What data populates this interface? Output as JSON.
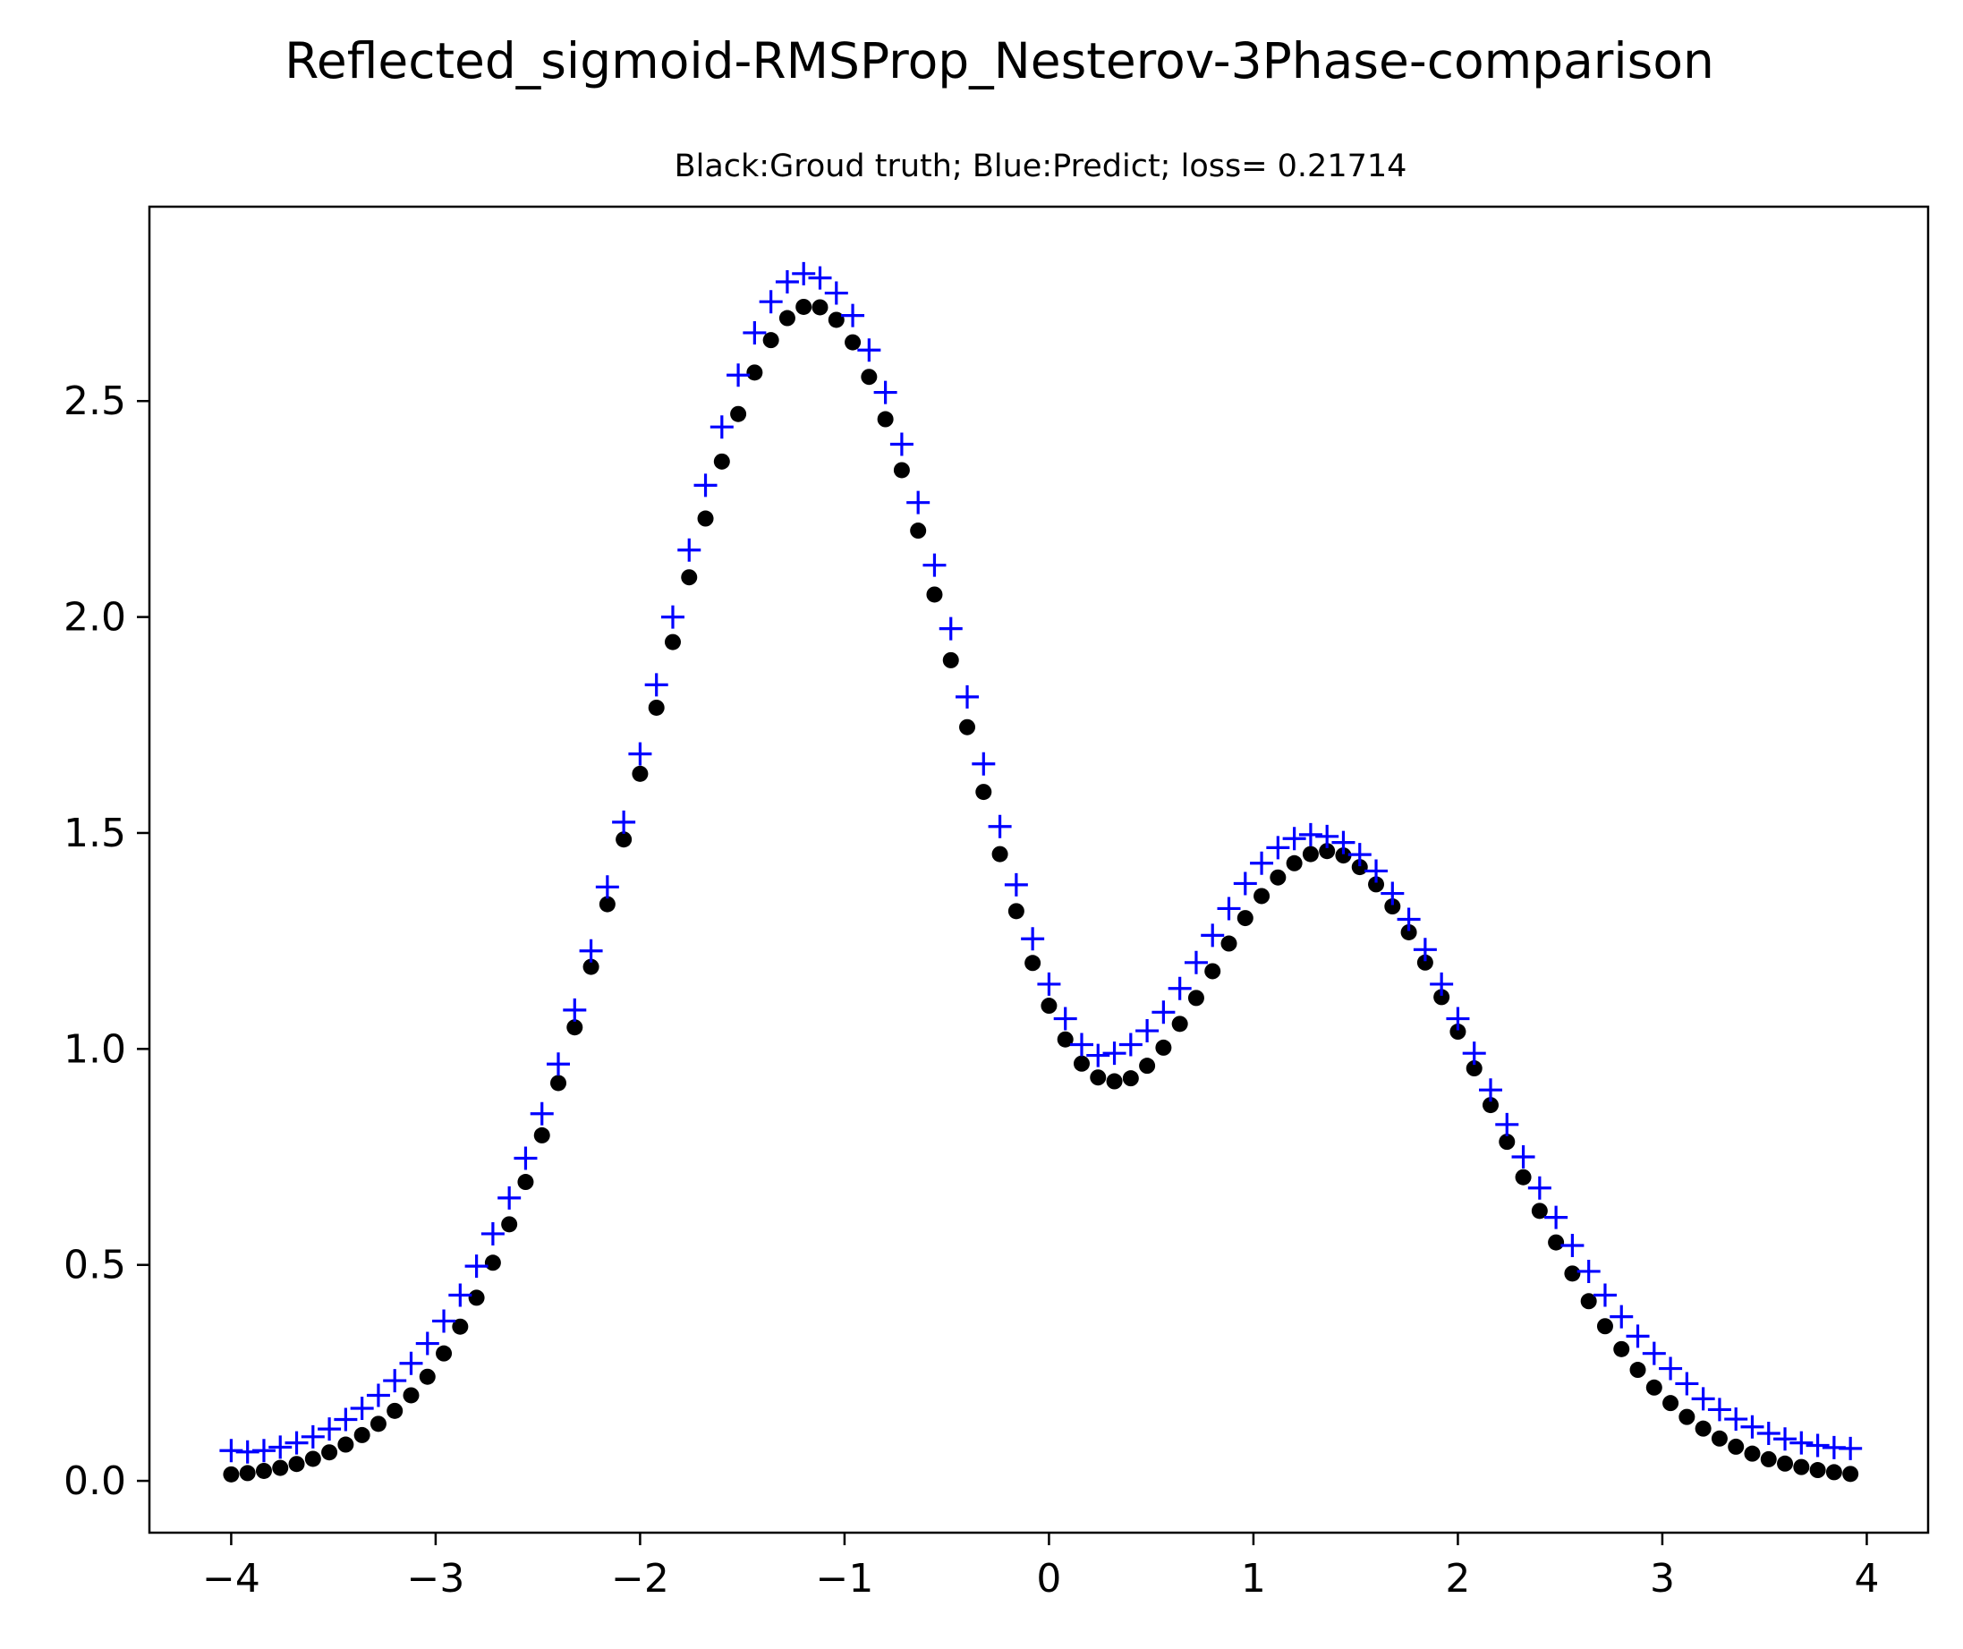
{
  "chart_data": {
    "type": "scatter",
    "title": "Reflected_sigmoid-RMSProp_Nesterov-3Phase-comparison",
    "subtitle": "Black:Groud truth; Blue:Predict; loss= 0.21714",
    "xlabel": "",
    "ylabel": "",
    "xlim": [
      -4.4,
      4.3
    ],
    "ylim": [
      -0.12,
      2.95
    ],
    "xticks": [
      -4,
      -3,
      -2,
      -1,
      0,
      1,
      2,
      3,
      4
    ],
    "xtick_labels": [
      "−4",
      "−3",
      "−2",
      "−1",
      "0",
      "1",
      "2",
      "3",
      "4"
    ],
    "yticks": [
      0.0,
      0.5,
      1.0,
      1.5,
      2.0,
      2.5
    ],
    "ytick_labels": [
      "0.0",
      "0.5",
      "1.0",
      "1.5",
      "2.0",
      "2.5"
    ],
    "grid": false,
    "x": [
      -4.0,
      -3.92,
      -3.84,
      -3.76,
      -3.68,
      -3.6,
      -3.52,
      -3.44,
      -3.36,
      -3.28,
      -3.2,
      -3.12,
      -3.04,
      -2.96,
      -2.88,
      -2.8,
      -2.72,
      -2.64,
      -2.56,
      -2.48,
      -2.4,
      -2.32,
      -2.24,
      -2.16,
      -2.08,
      -2.0,
      -1.92,
      -1.84,
      -1.76,
      -1.68,
      -1.6,
      -1.52,
      -1.44,
      -1.36,
      -1.28,
      -1.2,
      -1.12,
      -1.04,
      -0.96,
      -0.88,
      -0.8,
      -0.72,
      -0.64,
      -0.56,
      -0.48,
      -0.4,
      -0.32,
      -0.24,
      -0.16,
      -0.08,
      0.0,
      0.08,
      0.16,
      0.24,
      0.32,
      0.4,
      0.48,
      0.56,
      0.64,
      0.72,
      0.8,
      0.88,
      0.96,
      1.04,
      1.12,
      1.2,
      1.28,
      1.36,
      1.44,
      1.52,
      1.6,
      1.68,
      1.76,
      1.84,
      1.92,
      2.0,
      2.08,
      2.16,
      2.24,
      2.32,
      2.4,
      2.48,
      2.56,
      2.64,
      2.72,
      2.8,
      2.88,
      2.96,
      3.04,
      3.12,
      3.2,
      3.28,
      3.36,
      3.44,
      3.52,
      3.6,
      3.68,
      3.76,
      3.84,
      3.92
    ],
    "series": [
      {
        "color": "#000000",
        "marker": "dot",
        "values": [
          0.015,
          0.018,
          0.023,
          0.03,
          0.039,
          0.051,
          0.066,
          0.084,
          0.106,
          0.132,
          0.162,
          0.198,
          0.241,
          0.295,
          0.357,
          0.424,
          0.505,
          0.594,
          0.692,
          0.8,
          0.921,
          1.05,
          1.19,
          1.335,
          1.485,
          1.637,
          1.79,
          1.942,
          2.092,
          2.228,
          2.36,
          2.47,
          2.566,
          2.641,
          2.692,
          2.718,
          2.717,
          2.688,
          2.636,
          2.556,
          2.458,
          2.34,
          2.2,
          2.052,
          1.9,
          1.745,
          1.595,
          1.451,
          1.319,
          1.199,
          1.1,
          1.022,
          0.966,
          0.934,
          0.925,
          0.932,
          0.961,
          1.003,
          1.058,
          1.118,
          1.18,
          1.244,
          1.303,
          1.354,
          1.397,
          1.43,
          1.451,
          1.458,
          1.448,
          1.421,
          1.381,
          1.33,
          1.27,
          1.2,
          1.12,
          1.04,
          0.955,
          0.87,
          0.785,
          0.703,
          0.625,
          0.552,
          0.48,
          0.416,
          0.358,
          0.305,
          0.257,
          0.216,
          0.18,
          0.148,
          0.121,
          0.098,
          0.079,
          0.063,
          0.05,
          0.04,
          0.032,
          0.025,
          0.02,
          0.016
        ]
      },
      {
        "color": "#0000ff",
        "marker": "plus",
        "values": [
          0.07,
          0.067,
          0.07,
          0.078,
          0.088,
          0.102,
          0.12,
          0.142,
          0.168,
          0.198,
          0.232,
          0.272,
          0.318,
          0.37,
          0.43,
          0.497,
          0.572,
          0.655,
          0.747,
          0.85,
          0.965,
          1.09,
          1.227,
          1.375,
          1.525,
          1.683,
          1.843,
          2.0,
          2.155,
          2.305,
          2.44,
          2.56,
          2.658,
          2.73,
          2.776,
          2.795,
          2.785,
          2.75,
          2.698,
          2.618,
          2.52,
          2.4,
          2.265,
          2.12,
          1.973,
          1.815,
          1.66,
          1.515,
          1.38,
          1.255,
          1.15,
          1.07,
          1.01,
          0.985,
          0.99,
          1.01,
          1.042,
          1.085,
          1.14,
          1.2,
          1.263,
          1.325,
          1.383,
          1.43,
          1.466,
          1.487,
          1.496,
          1.492,
          1.478,
          1.45,
          1.412,
          1.36,
          1.3,
          1.23,
          1.15,
          1.07,
          0.99,
          0.905,
          0.825,
          0.75,
          0.678,
          0.61,
          0.545,
          0.485,
          0.43,
          0.38,
          0.335,
          0.295,
          0.26,
          0.225,
          0.19,
          0.165,
          0.143,
          0.125,
          0.11,
          0.097,
          0.088,
          0.082,
          0.077,
          0.075
        ]
      }
    ]
  }
}
